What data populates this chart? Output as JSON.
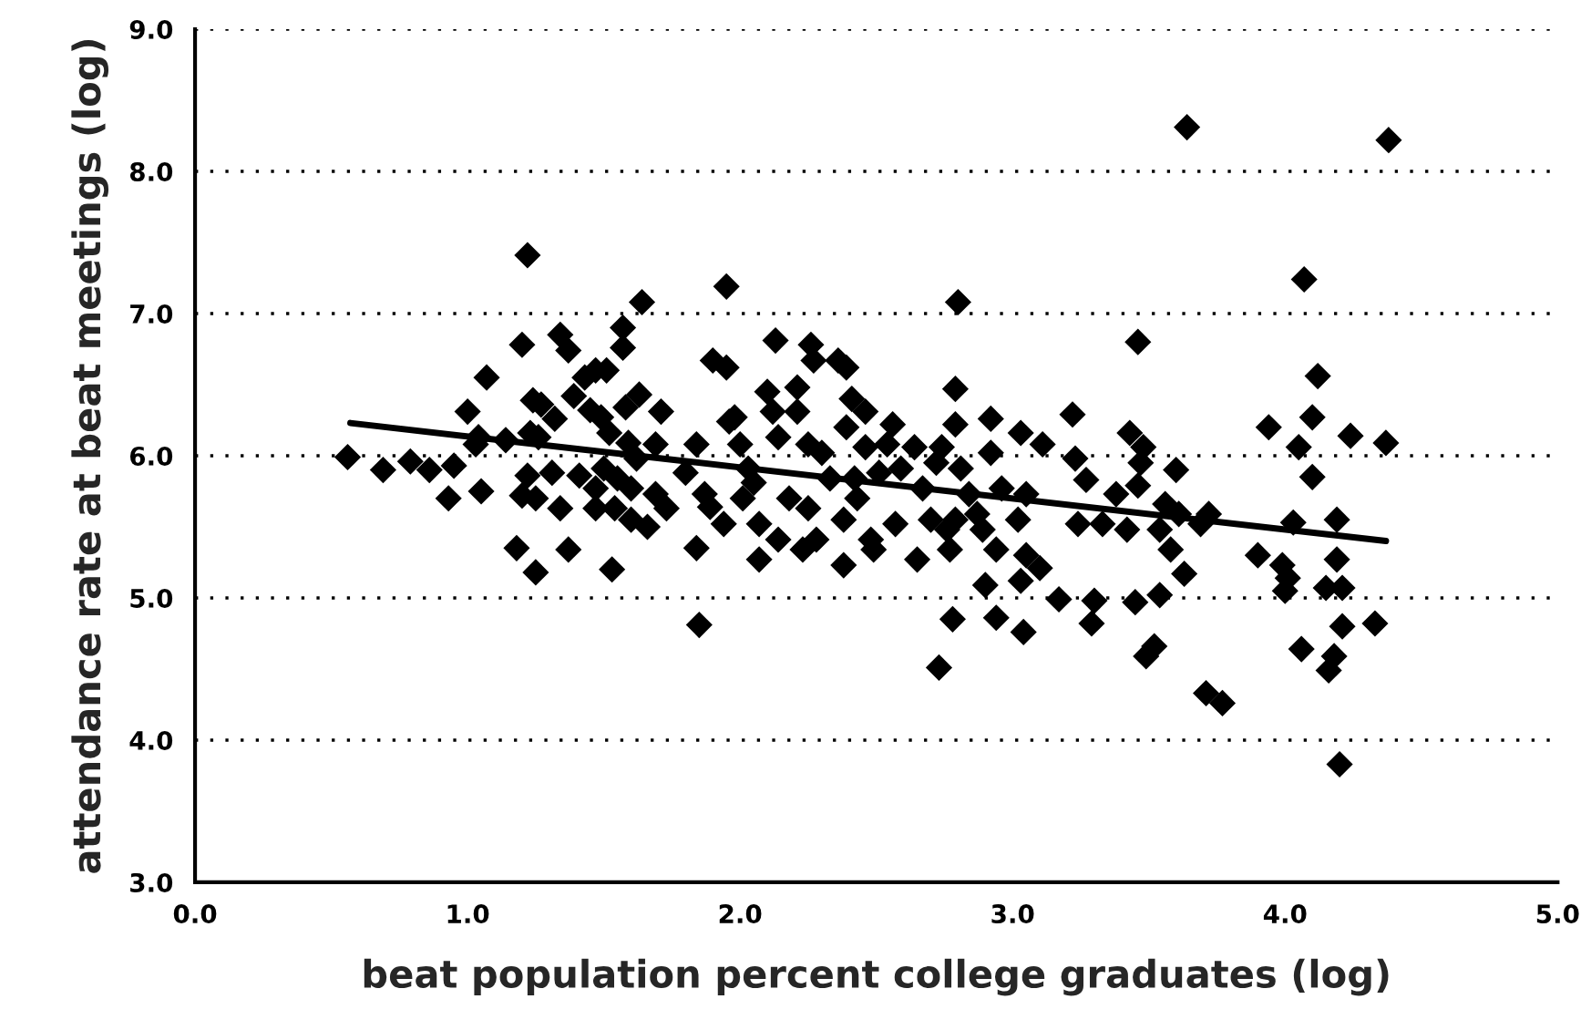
{
  "chart_data": {
    "type": "scatter",
    "xlabel": "beat population percent college graduates (log)",
    "ylabel": "attendance rate at beat meetings (log)",
    "xlim": [
      0,
      5
    ],
    "ylim": [
      3,
      9
    ],
    "xticks": [
      {
        "value": 0,
        "label": "0.0"
      },
      {
        "value": 1,
        "label": "1.0"
      },
      {
        "value": 2,
        "label": "2.0"
      },
      {
        "value": 3,
        "label": "3.0"
      },
      {
        "value": 4,
        "label": "4.0"
      },
      {
        "value": 5,
        "label": "5.0"
      }
    ],
    "yticks": [
      {
        "value": 3,
        "label": "3.0"
      },
      {
        "value": 4,
        "label": "4.0"
      },
      {
        "value": 5,
        "label": "5.0"
      },
      {
        "value": 6,
        "label": "6.0"
      },
      {
        "value": 7,
        "label": "7.0"
      },
      {
        "value": 8,
        "label": "8.0"
      },
      {
        "value": 9,
        "label": "9.0"
      }
    ],
    "grid": "y",
    "marker": "diamond",
    "series": [
      {
        "color": "#000000",
        "x": [
          0.56,
          0.69,
          0.79,
          0.86,
          0.95,
          0.93,
          1.0,
          1.07,
          1.03,
          1.05,
          1.04,
          1.14,
          1.2,
          1.22,
          1.18,
          1.25,
          1.2,
          1.22,
          1.23,
          1.24,
          1.27,
          1.26,
          1.25,
          1.34,
          1.37,
          1.32,
          1.37,
          1.34,
          1.31,
          1.41,
          1.39,
          1.43,
          1.47,
          1.51,
          1.45,
          1.49,
          1.53,
          1.52,
          1.5,
          1.47,
          1.47,
          1.55,
          1.54,
          1.57,
          1.57,
          1.58,
          1.59,
          1.6,
          1.6,
          1.62,
          1.64,
          1.63,
          1.66,
          1.69,
          1.71,
          1.73,
          1.69,
          1.8,
          1.84,
          1.85,
          1.84,
          1.87,
          1.9,
          1.95,
          1.95,
          1.89,
          1.94,
          1.96,
          1.98,
          2.0,
          2.01,
          2.03,
          2.05,
          2.07,
          2.07,
          2.1,
          2.12,
          2.13,
          2.14,
          2.14,
          2.18,
          2.21,
          2.21,
          2.23,
          2.25,
          2.25,
          2.26,
          2.27,
          2.28,
          2.3,
          2.33,
          2.36,
          2.39,
          2.38,
          2.38,
          2.39,
          2.41,
          2.42,
          2.43,
          2.46,
          2.46,
          2.48,
          2.49,
          2.51,
          2.54,
          2.56,
          2.57,
          2.59,
          2.64,
          2.65,
          2.67,
          2.7,
          2.72,
          2.74,
          2.73,
          2.76,
          2.77,
          2.78,
          2.79,
          2.8,
          2.79,
          2.79,
          2.81,
          2.84,
          2.87,
          2.89,
          2.9,
          2.92,
          2.92,
          2.94,
          2.94,
          2.96,
          3.02,
          3.03,
          3.03,
          3.04,
          3.05,
          3.05,
          3.1,
          3.11,
          3.17,
          3.22,
          3.23,
          3.24,
          3.27,
          3.29,
          3.3,
          3.33,
          3.38,
          3.42,
          3.43,
          3.45,
          3.46,
          3.46,
          3.47,
          3.48,
          3.49,
          3.52,
          3.54,
          3.54,
          3.56,
          3.58,
          3.6,
          3.61,
          3.63,
          3.64,
          3.69,
          3.71,
          3.72,
          3.77,
          3.9,
          3.94,
          3.99,
          4.0,
          4.01,
          4.03,
          4.05,
          4.06,
          4.07,
          4.1,
          4.1,
          4.12,
          4.15,
          4.16,
          4.18,
          4.19,
          4.19,
          4.2,
          4.21,
          4.21,
          4.24,
          4.33,
          4.37,
          4.38
        ],
        "values": [
          5.99,
          5.9,
          5.96,
          5.9,
          5.93,
          5.7,
          6.31,
          6.55,
          6.08,
          5.75,
          6.13,
          6.11,
          6.78,
          7.41,
          5.35,
          5.18,
          5.72,
          5.86,
          6.16,
          6.39,
          6.36,
          6.13,
          5.7,
          6.85,
          6.74,
          6.26,
          5.34,
          5.63,
          5.88,
          5.86,
          6.42,
          6.55,
          6.6,
          6.6,
          6.32,
          6.27,
          5.2,
          6.16,
          5.91,
          5.77,
          5.63,
          5.84,
          5.63,
          6.9,
          6.76,
          6.34,
          6.09,
          5.77,
          5.55,
          5.98,
          7.08,
          6.43,
          5.5,
          6.08,
          6.31,
          5.63,
          5.73,
          5.88,
          5.35,
          4.81,
          6.08,
          5.73,
          6.67,
          6.62,
          7.19,
          5.64,
          5.52,
          6.24,
          6.27,
          6.08,
          5.7,
          5.91,
          5.81,
          5.27,
          5.52,
          6.45,
          6.31,
          6.81,
          5.41,
          6.13,
          5.7,
          6.48,
          6.31,
          5.34,
          5.63,
          6.08,
          6.78,
          6.67,
          5.41,
          6.02,
          5.84,
          6.67,
          6.62,
          5.23,
          5.55,
          6.2,
          6.4,
          5.84,
          5.7,
          6.31,
          6.06,
          5.41,
          5.34,
          5.88,
          6.08,
          6.22,
          5.52,
          5.91,
          6.06,
          5.27,
          5.77,
          5.55,
          5.95,
          6.06,
          4.51,
          5.48,
          5.34,
          4.85,
          6.47,
          7.08,
          6.22,
          5.55,
          5.91,
          5.73,
          5.59,
          5.48,
          5.09,
          6.26,
          6.02,
          4.86,
          5.34,
          5.77,
          5.55,
          6.16,
          5.12,
          4.76,
          5.73,
          5.3,
          5.21,
          6.08,
          4.99,
          6.29,
          5.98,
          5.52,
          5.83,
          4.82,
          4.98,
          5.52,
          5.73,
          5.48,
          6.16,
          4.97,
          6.8,
          5.79,
          5.95,
          6.06,
          4.59,
          4.66,
          5.02,
          5.48,
          5.66,
          5.34,
          5.9,
          5.59,
          5.17,
          8.31,
          5.52,
          4.33,
          5.59,
          4.26,
          5.3,
          6.2,
          5.23,
          5.05,
          5.14,
          5.53,
          6.06,
          4.64,
          7.24,
          6.27,
          5.85,
          6.56,
          5.07,
          4.49,
          4.59,
          5.55,
          5.27,
          3.83,
          4.8,
          5.07,
          6.14,
          4.82,
          6.09,
          8.22
        ]
      },
      {
        "type": "line",
        "color": "#000000",
        "marker": "none",
        "line_style": "solid",
        "x": [
          0.57,
          4.37
        ],
        "values": [
          6.23,
          5.4
        ]
      }
    ]
  }
}
